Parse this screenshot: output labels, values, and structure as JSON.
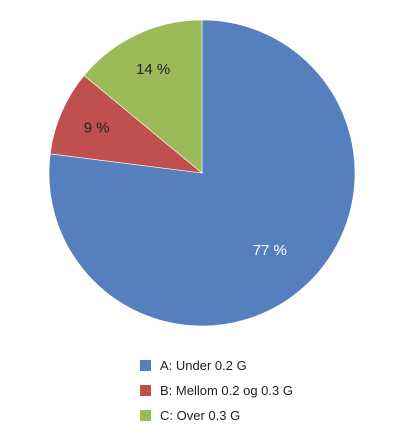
{
  "chart_data": {
    "type": "pie",
    "title": "",
    "start": "top",
    "direction": "clockwise",
    "slices": [
      {
        "label": "A: Under 0.2 G",
        "value": 77,
        "data_label": "77 %",
        "color": "#5580bd",
        "label_color": "#ffffff"
      },
      {
        "label": "B: Mellom 0.2 og 0.3 G",
        "value": 9,
        "data_label": "9 %",
        "color": "#c0504d",
        "label_color": "#222222"
      },
      {
        "label": "C: Over 0.3 G",
        "value": 14,
        "data_label": "14 %",
        "color": "#9bbb59",
        "label_color": "#222222"
      }
    ],
    "legend_position": "bottom"
  }
}
